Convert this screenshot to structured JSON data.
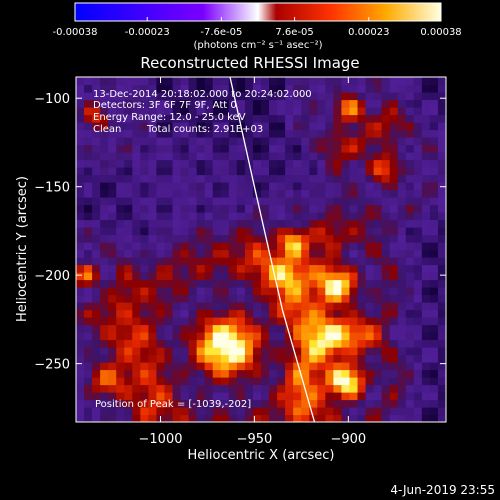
{
  "colorbar": {
    "ticks": [
      "-0.00038",
      "-0.00023",
      "-7.6e-05",
      "7.6e-05",
      "0.00023",
      "0.00038"
    ],
    "tick_values": [
      -0.00038,
      -0.00023,
      -7.6e-05,
      7.6e-05,
      0.00023,
      0.00038
    ],
    "range": [
      -0.00038,
      0.00038
    ],
    "unit_label": "(photons cm⁻² s⁻¹ asec⁻²)",
    "colors": [
      "#0000ff",
      "#4400ff",
      "#6a00ff",
      "#ffffff",
      "#cc0000",
      "#ff3300",
      "#ff7700",
      "#ffbb00",
      "#ffee00",
      "#ffffcc"
    ]
  },
  "annotations": {
    "line1": "13-Dec-2014 20:18:02.000 to 20:24:02.000",
    "line2": "Detectors: 3F 6F 7F 9F, Att 0",
    "line3": "Energy Range: 12.0 - 25.0 keV",
    "line4_a": "Clean",
    "line4_b": "Total counts: 2.91E+03",
    "peak": "Position of Peak = [-1039,-202]"
  },
  "footer": {
    "timestamp": "4-Jun-2019 23:55"
  },
  "chart_data": {
    "type": "heatmap",
    "title": "Reconstructed RHESSI Image",
    "xlabel": "Heliocentric X (arcsec)",
    "ylabel": "Heliocentric Y (arcsec)",
    "xlim": [
      -1045,
      -848
    ],
    "ylim": [
      -283,
      -88
    ],
    "x_ticks": [
      -1000,
      -950,
      -900
    ],
    "x_tick_labels": [
      "−1000",
      "−950",
      "−900"
    ],
    "y_ticks": [
      -100,
      -150,
      -200,
      -250
    ],
    "y_tick_labels": [
      "−100",
      "−150",
      "−200",
      "−250"
    ],
    "limb_line": [
      [
        -963,
        -88
      ],
      [
        -950,
        -150
      ],
      [
        -935,
        -220
      ],
      [
        -918,
        -283
      ]
    ],
    "sources": [
      {
        "x": -965,
        "y": -240,
        "amplitude": 1.0,
        "sigma": 38
      },
      {
        "x": -1035,
        "y": -110,
        "amplitude": 0.55,
        "sigma": 18
      },
      {
        "x": -1040,
        "y": -200,
        "amplitude": 0.6,
        "sigma": 16
      },
      {
        "x": -900,
        "y": -105,
        "amplitude": 0.65,
        "sigma": 18
      },
      {
        "x": -880,
        "y": -140,
        "amplitude": 0.6,
        "sigma": 20
      },
      {
        "x": -905,
        "y": -205,
        "amplitude": 0.75,
        "sigma": 22
      },
      {
        "x": -900,
        "y": -260,
        "amplitude": 0.8,
        "sigma": 20
      },
      {
        "x": -1030,
        "y": -260,
        "amplitude": 0.45,
        "sigma": 22
      },
      {
        "x": -930,
        "y": -180,
        "amplitude": 0.45,
        "sigma": 16
      },
      {
        "x": -985,
        "y": -150,
        "amplitude": 0.2,
        "sigma": 18
      }
    ]
  }
}
